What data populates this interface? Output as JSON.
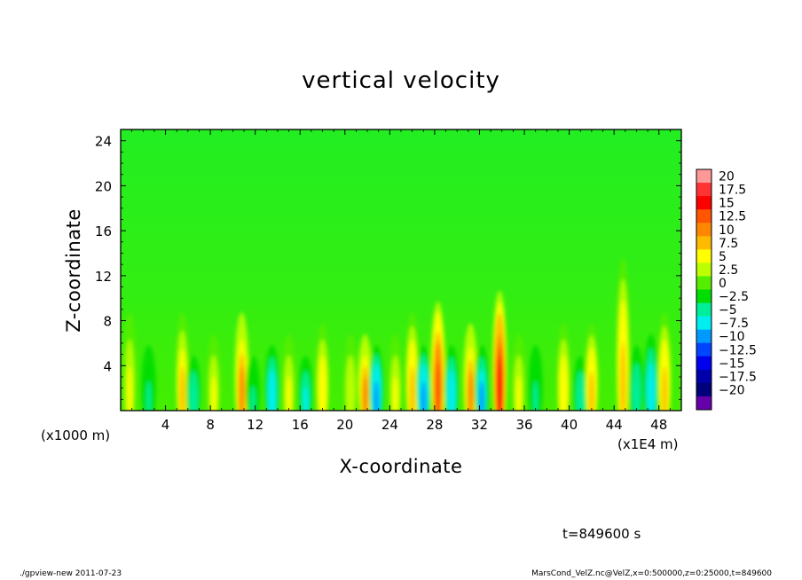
{
  "chart_data": {
    "type": "heatmap",
    "title": "vertical velocity",
    "xlabel": "X-coordinate",
    "ylabel": "Z-coordinate",
    "x_unit_label": "(x1E4 m)",
    "y_unit_label": "(x1000 m)",
    "xlim": [
      0,
      50
    ],
    "ylim": [
      0,
      25
    ],
    "x_ticks": [
      4,
      8,
      12,
      16,
      20,
      24,
      28,
      32,
      36,
      40,
      44,
      48
    ],
    "y_ticks": [
      4,
      8,
      12,
      16,
      20,
      24
    ],
    "colorbar": {
      "labels": [
        "20",
        "17.5",
        "15",
        "12.5",
        "10",
        "7.5",
        "5",
        "2.5",
        "0",
        "-2.5",
        "-5",
        "-7.5",
        "-10",
        "-12.5",
        "-15",
        "-17.5",
        "-20"
      ],
      "colors": [
        "#ff9999",
        "#ff3333",
        "#ff0000",
        "#ff5500",
        "#ff8800",
        "#ffbb00",
        "#ffff00",
        "#bbff00",
        "#55ee00",
        "#00dd00",
        "#00ee99",
        "#00eeee",
        "#0099ff",
        "#0044ff",
        "#0000ee",
        "#0000aa",
        "#00007a",
        "#6600aa"
      ]
    },
    "features": [
      {
        "x": 0.8,
        "z_top": 9,
        "amp": 6
      },
      {
        "x": 2.5,
        "z_top": 6,
        "amp": -4
      },
      {
        "x": 5.5,
        "z_top": 9,
        "amp": 8
      },
      {
        "x": 6.5,
        "z_top": 5,
        "amp": -5
      },
      {
        "x": 8.3,
        "z_top": 7,
        "amp": 5
      },
      {
        "x": 10.8,
        "z_top": 9,
        "amp": 10
      },
      {
        "x": 11.8,
        "z_top": 5,
        "amp": -4
      },
      {
        "x": 13.5,
        "z_top": 6,
        "amp": -7
      },
      {
        "x": 15.0,
        "z_top": 7,
        "amp": 5
      },
      {
        "x": 16.5,
        "z_top": 5,
        "amp": -6
      },
      {
        "x": 18.0,
        "z_top": 8,
        "amp": 7
      },
      {
        "x": 20.5,
        "z_top": 7,
        "amp": 4
      },
      {
        "x": 21.8,
        "z_top": 7,
        "amp": 10
      },
      {
        "x": 22.8,
        "z_top": 6,
        "amp": -9
      },
      {
        "x": 24.5,
        "z_top": 7,
        "amp": 5
      },
      {
        "x": 26.0,
        "z_top": 9,
        "amp": 9
      },
      {
        "x": 27.0,
        "z_top": 6,
        "amp": -9
      },
      {
        "x": 28.3,
        "z_top": 10,
        "amp": 14
      },
      {
        "x": 29.5,
        "z_top": 6,
        "amp": -7
      },
      {
        "x": 31.2,
        "z_top": 8,
        "amp": 11
      },
      {
        "x": 32.2,
        "z_top": 6,
        "amp": -8
      },
      {
        "x": 33.8,
        "z_top": 11,
        "amp": 15
      },
      {
        "x": 35.5,
        "z_top": 7,
        "amp": 5
      },
      {
        "x": 37.0,
        "z_top": 6,
        "amp": -4
      },
      {
        "x": 39.5,
        "z_top": 8,
        "amp": 7
      },
      {
        "x": 41.0,
        "z_top": 5,
        "amp": -5
      },
      {
        "x": 42.0,
        "z_top": 8,
        "amp": 9
      },
      {
        "x": 44.8,
        "z_top": 14,
        "amp": 9
      },
      {
        "x": 46.0,
        "z_top": 6,
        "amp": -5
      },
      {
        "x": 47.3,
        "z_top": 7,
        "amp": -7
      },
      {
        "x": 48.5,
        "z_top": 9,
        "amp": 9
      }
    ]
  },
  "annotations": {
    "time": "t=849600 s",
    "footer_left": "./gpview-new   2011-07-23",
    "footer_right": "MarsCond_VelZ.nc@VelZ,x=0:500000,z=0:25000,t=849600"
  }
}
